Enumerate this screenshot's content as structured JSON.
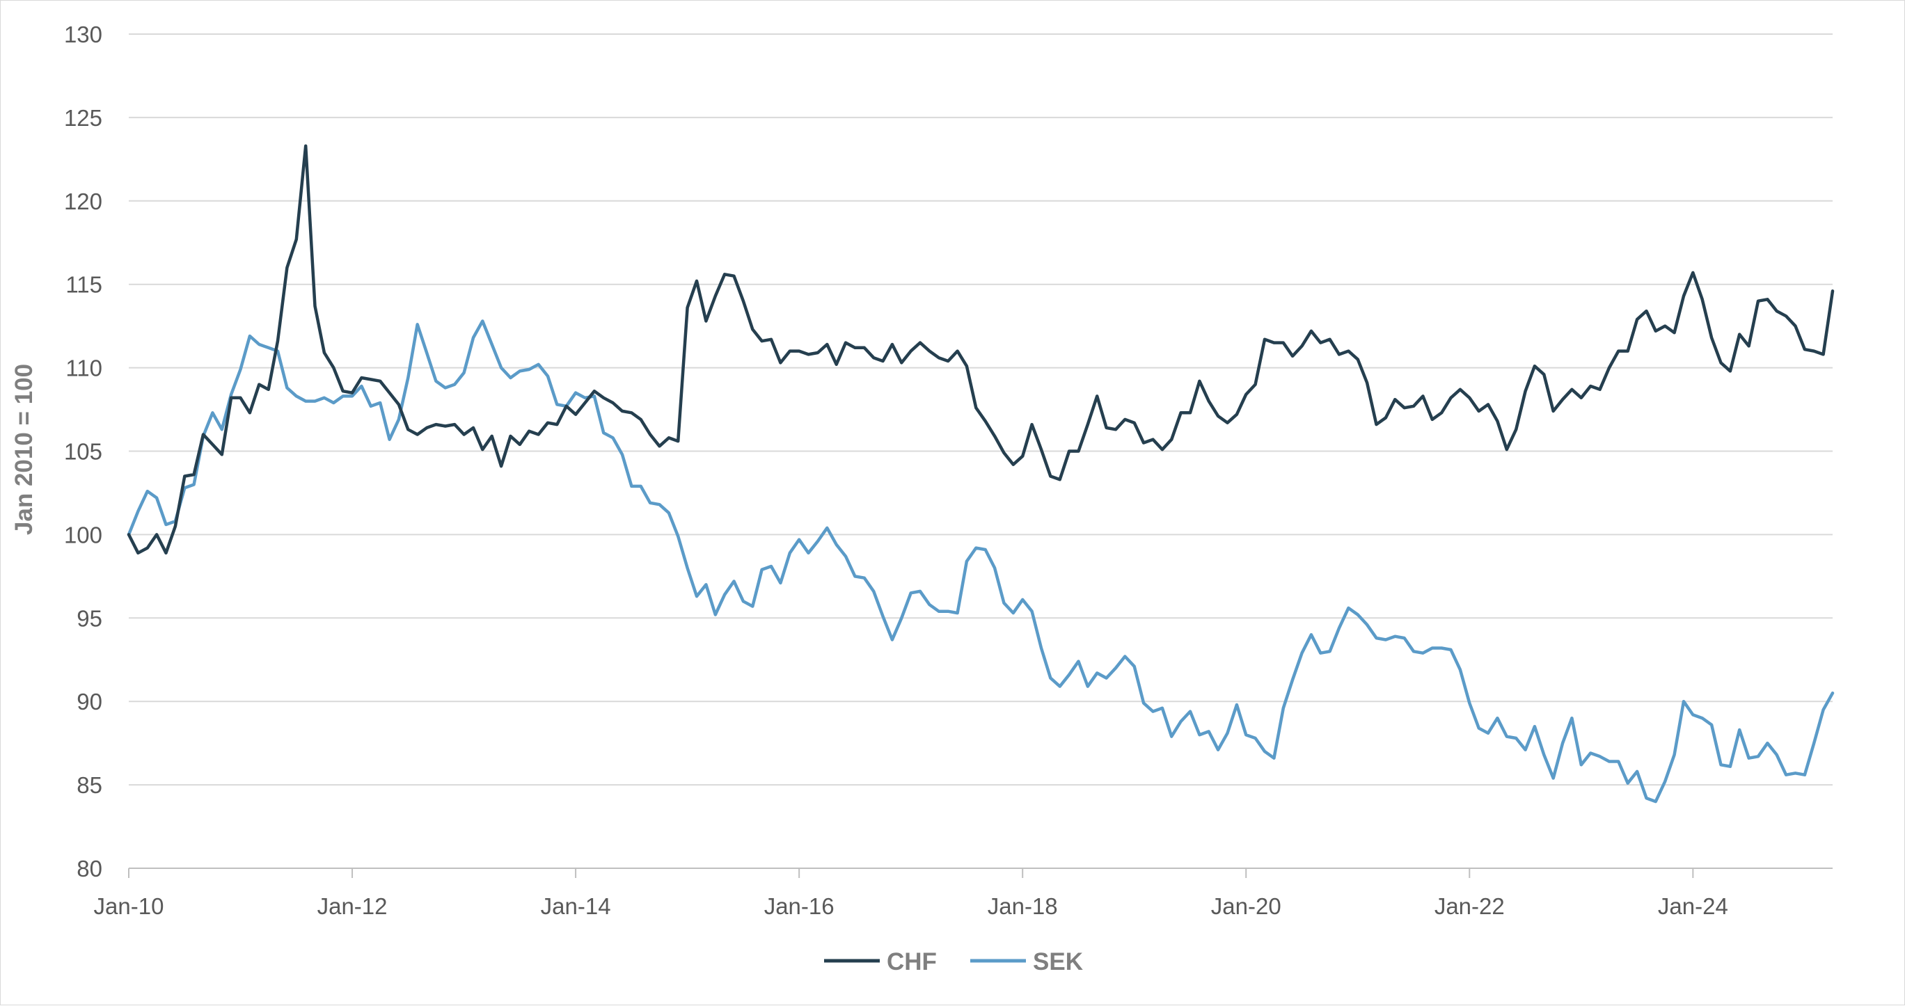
{
  "chart_data": {
    "type": "line",
    "title": "",
    "xlabel": "",
    "ylabel": "Jan 2010 = 100",
    "ylim": [
      80,
      130
    ],
    "yticks": [
      "80",
      "85",
      "90",
      "95",
      "100",
      "105",
      "110",
      "115",
      "120",
      "125",
      "130"
    ],
    "xticks": [
      "Jan-10",
      "Jan-12",
      "Jan-14",
      "Jan-16",
      "Jan-18",
      "Jan-20",
      "Jan-22",
      "Jan-24"
    ],
    "x_start": "2010-01",
    "x_end": "2025-04",
    "grid": "horizontal",
    "legend": "bottom-center",
    "series": [
      {
        "name": "CHF",
        "color": "#253f4f",
        "values": [
          100.0,
          98.9,
          99.2,
          100.0,
          98.9,
          100.5,
          103.5,
          103.6,
          106.0,
          105.4,
          104.8,
          108.2,
          108.2,
          107.3,
          109.0,
          108.7,
          111.6,
          116.0,
          117.7,
          123.3,
          113.7,
          110.9,
          110.0,
          108.6,
          108.5,
          109.4,
          109.3,
          109.2,
          108.5,
          107.8,
          106.3,
          106.0,
          106.4,
          106.6,
          106.5,
          106.6,
          106.0,
          106.4,
          105.1,
          105.9,
          104.1,
          105.9,
          105.4,
          106.2,
          106.0,
          106.7,
          106.6,
          107.7,
          107.2,
          107.9,
          108.6,
          108.2,
          107.9,
          107.4,
          107.3,
          106.9,
          106.0,
          105.3,
          105.8,
          105.6,
          113.6,
          115.2,
          112.8,
          114.3,
          115.6,
          115.5,
          114.0,
          112.3,
          111.6,
          111.7,
          110.3,
          111.0,
          111.0,
          110.8,
          110.9,
          111.4,
          110.2,
          111.5,
          111.2,
          111.2,
          110.6,
          110.4,
          111.4,
          110.3,
          111.0,
          111.5,
          111.0,
          110.6,
          110.4,
          111.0,
          110.1,
          107.6,
          106.8,
          105.9,
          104.9,
          104.2,
          104.7,
          106.6,
          105.1,
          103.5,
          103.3,
          105.0,
          105.0,
          106.6,
          108.3,
          106.4,
          106.3,
          106.9,
          106.7,
          105.5,
          105.7,
          105.1,
          105.7,
          107.3,
          107.3,
          109.2,
          108.0,
          107.1,
          106.7,
          107.2,
          108.4,
          109.0,
          111.7,
          111.5,
          111.5,
          110.7,
          111.3,
          112.2,
          111.5,
          111.7,
          110.8,
          111.0,
          110.5,
          109.1,
          106.6,
          107.0,
          108.1,
          107.6,
          107.7,
          108.3,
          106.9,
          107.3,
          108.2,
          108.7,
          108.2,
          107.4,
          107.8,
          106.8,
          105.1,
          106.3,
          108.6,
          110.1,
          109.6,
          107.4,
          108.1,
          108.7,
          108.2,
          108.9,
          108.7,
          110.0,
          111.0,
          111.0,
          112.9,
          113.4,
          112.2,
          112.5,
          112.1,
          114.3,
          115.7,
          114.1,
          111.8,
          110.3,
          109.8,
          112.0,
          111.3,
          114.0,
          114.1,
          113.4,
          113.1,
          112.5,
          111.1,
          111.0,
          110.8,
          114.6
        ]
      },
      {
        "name": "SEK",
        "color": "#5b9bc8",
        "values": [
          100.0,
          101.4,
          102.6,
          102.2,
          100.6,
          100.8,
          102.8,
          103.0,
          105.9,
          107.3,
          106.3,
          108.4,
          109.9,
          111.9,
          111.4,
          111.2,
          111.0,
          108.8,
          108.3,
          108.0,
          108.0,
          108.2,
          107.9,
          108.3,
          108.3,
          108.9,
          107.7,
          107.9,
          105.7,
          106.9,
          109.4,
          112.6,
          110.9,
          109.2,
          108.8,
          109.0,
          109.7,
          111.8,
          112.8,
          111.4,
          110.0,
          109.4,
          109.8,
          109.9,
          110.2,
          109.5,
          107.8,
          107.7,
          108.5,
          108.2,
          108.3,
          106.1,
          105.8,
          104.8,
          102.9,
          102.9,
          101.9,
          101.8,
          101.3,
          99.9,
          98.0,
          96.3,
          97.0,
          95.2,
          96.4,
          97.2,
          96.0,
          95.7,
          97.9,
          98.1,
          97.1,
          98.9,
          99.7,
          98.9,
          99.6,
          100.4,
          99.4,
          98.7,
          97.5,
          97.4,
          96.6,
          95.1,
          93.7,
          95.0,
          96.5,
          96.6,
          95.8,
          95.4,
          95.4,
          95.3,
          98.4,
          99.2,
          99.1,
          98.0,
          95.9,
          95.3,
          96.1,
          95.4,
          93.2,
          91.4,
          90.9,
          91.6,
          92.4,
          90.9,
          91.7,
          91.4,
          92.0,
          92.7,
          92.1,
          89.9,
          89.4,
          89.6,
          87.9,
          88.8,
          89.4,
          88.0,
          88.2,
          87.1,
          88.1,
          89.8,
          88.0,
          87.8,
          87.0,
          86.6,
          89.6,
          91.3,
          92.9,
          94.0,
          92.9,
          93.0,
          94.4,
          95.6,
          95.2,
          94.6,
          93.8,
          93.7,
          93.9,
          93.8,
          93.0,
          92.9,
          93.2,
          93.2,
          93.1,
          91.9,
          89.9,
          88.4,
          88.1,
          89.0,
          87.9,
          87.8,
          87.1,
          88.5,
          86.8,
          85.4,
          87.5,
          89.0,
          86.2,
          86.9,
          86.7,
          86.4,
          86.4,
          85.1,
          85.8,
          84.2,
          84.0,
          85.2,
          86.8,
          90.0,
          89.2,
          89.0,
          88.6,
          86.2,
          86.1,
          88.3,
          86.6,
          86.7,
          87.5,
          86.8,
          85.6,
          85.7,
          85.6,
          87.5,
          89.5,
          90.5
        ]
      }
    ]
  }
}
